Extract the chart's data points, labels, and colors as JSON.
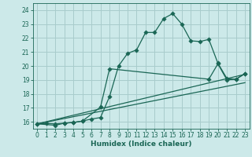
{
  "xlabel": "Humidex (Indice chaleur)",
  "bg_color": "#cce9e9",
  "grid_color": "#a8cccc",
  "line_color": "#1a6655",
  "xlim": [
    -0.5,
    23.5
  ],
  "ylim": [
    15.5,
    24.5
  ],
  "xticks": [
    0,
    1,
    2,
    3,
    4,
    5,
    6,
    7,
    8,
    9,
    10,
    11,
    12,
    13,
    14,
    15,
    16,
    17,
    18,
    19,
    20,
    21,
    22,
    23
  ],
  "yticks": [
    16,
    17,
    18,
    19,
    20,
    21,
    22,
    23,
    24
  ],
  "line1_x": [
    0,
    1,
    2,
    3,
    4,
    5,
    6,
    7,
    8,
    9,
    10,
    11,
    12,
    13,
    14,
    15,
    16,
    17,
    18,
    19,
    20,
    21,
    22,
    23
  ],
  "line1_y": [
    15.85,
    15.88,
    15.85,
    15.9,
    15.95,
    16.05,
    16.2,
    16.3,
    17.8,
    20.0,
    20.9,
    21.15,
    22.4,
    22.4,
    23.4,
    23.75,
    23.0,
    21.8,
    21.75,
    21.9,
    20.2,
    19.1,
    19.05,
    19.45
  ],
  "line2_x": [
    0,
    2,
    3,
    4,
    5,
    7,
    8,
    19,
    20,
    21,
    22,
    23
  ],
  "line2_y": [
    15.85,
    15.75,
    15.9,
    15.95,
    16.05,
    17.05,
    19.8,
    19.05,
    20.15,
    19.0,
    19.05,
    19.45
  ],
  "line3_x": [
    0,
    23
  ],
  "line3_y": [
    15.85,
    19.4
  ],
  "line4_x": [
    0,
    23
  ],
  "line4_y": [
    15.85,
    18.8
  ]
}
